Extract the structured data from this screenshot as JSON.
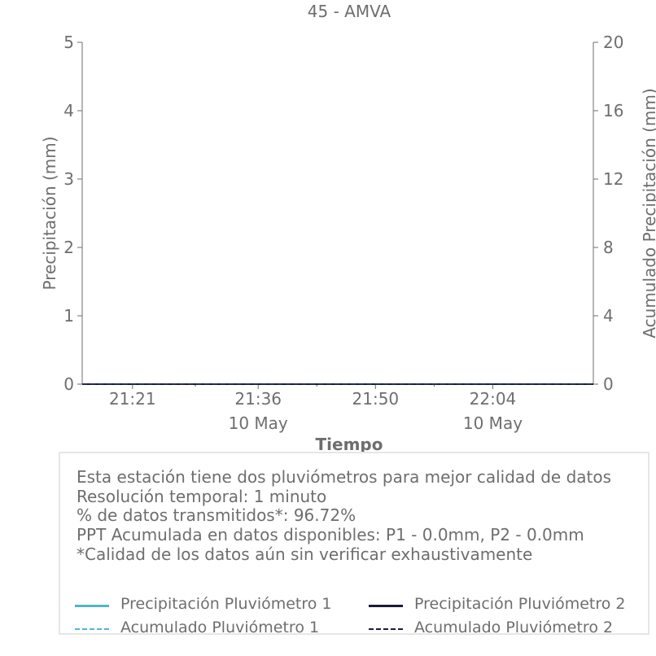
{
  "chart_data": {
    "type": "line",
    "title": "45 - AMVA",
    "xlabel": "Tiempo",
    "ylabel_left": "Precipitación (mm)",
    "ylabel_right": "Acumulado Precipitación (mm)",
    "x_ticks": [
      {
        "time": "21:21",
        "date": ""
      },
      {
        "time": "21:36",
        "date": "10 May"
      },
      {
        "time": "21:50",
        "date": ""
      },
      {
        "time": "22:04",
        "date": "10 May"
      }
    ],
    "x_range": [
      "21:15",
      "22:16"
    ],
    "ylim_left": [
      0,
      5
    ],
    "yticks_left": [
      "0",
      "1",
      "2",
      "3",
      "4",
      "5"
    ],
    "ylim_right": [
      0,
      20
    ],
    "yticks_right": [
      "0",
      "4",
      "8",
      "12",
      "16",
      "20"
    ],
    "series": [
      {
        "name": "Precipitación Pluviómetro 1",
        "axis": "left",
        "color": "#4fb6c8",
        "dash": "solid",
        "x": [
          "21:15",
          "22:16"
        ],
        "values": [
          0,
          0
        ]
      },
      {
        "name": "Precipitación Pluviómetro 2",
        "axis": "left",
        "color": "#1b1b3a",
        "dash": "solid",
        "x": [
          "21:15",
          "22:16"
        ],
        "values": [
          0,
          0
        ]
      },
      {
        "name": "Acumulado Pluviómetro 1",
        "axis": "right",
        "color": "#4fb6c8",
        "dash": "dashed",
        "x": [
          "21:15",
          "22:16"
        ],
        "values": [
          0,
          0
        ]
      },
      {
        "name": "Acumulado Pluviómetro 2",
        "axis": "right",
        "color": "#1b1b3a",
        "dash": "dashed",
        "x": [
          "21:15",
          "22:16"
        ],
        "values": [
          0,
          0
        ]
      }
    ],
    "grid": false,
    "legend_placement": "bottom"
  },
  "info": {
    "line1": "Esta estación tiene dos pluviómetros para mejor calidad de datos",
    "line2": "Resolución temporal: 1 minuto",
    "line3": "% de datos transmitidos*: 96.72%",
    "line4": "PPT Acumulada en datos disponibles: P1 - 0.0mm, P2 - 0.0mm",
    "line5": "*Calidad de los datos aún sin verificar exhaustivamente"
  },
  "legend": [
    {
      "label": "Precipitación Pluviómetro 1",
      "color": "#4fb6c8",
      "dash": "solid"
    },
    {
      "label": "Precipitación Pluviómetro 2",
      "color": "#1b1b3a",
      "dash": "solid"
    },
    {
      "label": "Acumulado Pluviómetro 1",
      "color": "#4fb6c8",
      "dash": "dashed"
    },
    {
      "label": "Acumulado Pluviómetro 2",
      "color": "#1b1b3a",
      "dash": "dashed"
    }
  ]
}
